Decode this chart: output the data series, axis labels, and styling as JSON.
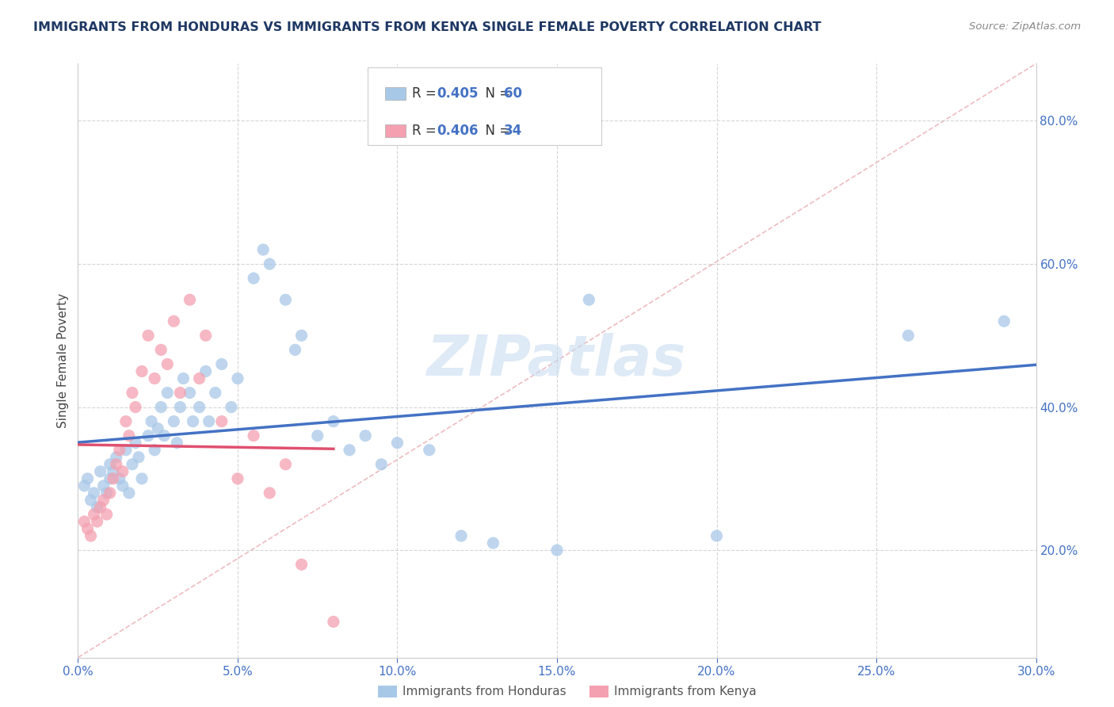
{
  "title": "IMMIGRANTS FROM HONDURAS VS IMMIGRANTS FROM KENYA SINGLE FEMALE POVERTY CORRELATION CHART",
  "source": "Source: ZipAtlas.com",
  "ylabel": "Single Female Poverty",
  "x_min": 0.0,
  "x_max": 0.3,
  "y_min": 0.05,
  "y_max": 0.88,
  "y_ticks": [
    0.2,
    0.4,
    0.6,
    0.8
  ],
  "y_tick_labels": [
    "20.0%",
    "40.0%",
    "60.0%",
    "80.0%"
  ],
  "x_ticks": [
    0.0,
    0.05,
    0.1,
    0.15,
    0.2,
    0.25,
    0.3
  ],
  "x_tick_labels": [
    "0.0%",
    "5.0%",
    "10.0%",
    "15.0%",
    "20.0%",
    "25.0%",
    "30.0%"
  ],
  "R1": "0.405",
  "N1": "60",
  "R2": "0.406",
  "N2": "34",
  "color_honduras": "#A8C8E8",
  "color_kenya": "#F4A0B0",
  "color_line_honduras": "#4472C4",
  "color_line_kenya": "#E05070",
  "color_diagonal": "#D0A0A8",
  "color_title": "#1F3864",
  "color_source": "#888888",
  "color_axis_labels": "#4472C4",
  "watermark_text": "ZIPatlas",
  "watermark_color": "#C8DCF0",
  "legend_label1": "R = 0.405   N = 60",
  "legend_label2": "R = 0.406   N = 34",
  "legend_bottom1": "Immigrants from Honduras",
  "legend_bottom2": "Immigrants from Kenya",
  "honduras_x": [
    0.002,
    0.003,
    0.004,
    0.005,
    0.006,
    0.007,
    0.008,
    0.009,
    0.01,
    0.01,
    0.011,
    0.012,
    0.013,
    0.014,
    0.015,
    0.016,
    0.017,
    0.018,
    0.019,
    0.02,
    0.022,
    0.023,
    0.024,
    0.025,
    0.026,
    0.027,
    0.028,
    0.03,
    0.031,
    0.032,
    0.033,
    0.035,
    0.036,
    0.038,
    0.04,
    0.041,
    0.043,
    0.045,
    0.048,
    0.05,
    0.055,
    0.058,
    0.06,
    0.065,
    0.068,
    0.07,
    0.075,
    0.08,
    0.085,
    0.09,
    0.095,
    0.1,
    0.11,
    0.12,
    0.13,
    0.15,
    0.16,
    0.2,
    0.26,
    0.29
  ],
  "honduras_y": [
    0.29,
    0.3,
    0.27,
    0.28,
    0.26,
    0.31,
    0.29,
    0.28,
    0.32,
    0.3,
    0.31,
    0.33,
    0.3,
    0.29,
    0.34,
    0.28,
    0.32,
    0.35,
    0.33,
    0.3,
    0.36,
    0.38,
    0.34,
    0.37,
    0.4,
    0.36,
    0.42,
    0.38,
    0.35,
    0.4,
    0.44,
    0.42,
    0.38,
    0.4,
    0.45,
    0.38,
    0.42,
    0.46,
    0.4,
    0.44,
    0.58,
    0.62,
    0.6,
    0.55,
    0.48,
    0.5,
    0.36,
    0.38,
    0.34,
    0.36,
    0.32,
    0.35,
    0.34,
    0.22,
    0.21,
    0.2,
    0.55,
    0.22,
    0.5,
    0.52
  ],
  "kenya_x": [
    0.002,
    0.003,
    0.004,
    0.005,
    0.006,
    0.007,
    0.008,
    0.009,
    0.01,
    0.011,
    0.012,
    0.013,
    0.014,
    0.015,
    0.016,
    0.017,
    0.018,
    0.02,
    0.022,
    0.024,
    0.026,
    0.028,
    0.03,
    0.032,
    0.035,
    0.038,
    0.04,
    0.045,
    0.05,
    0.055,
    0.06,
    0.065,
    0.07,
    0.08
  ],
  "kenya_y": [
    0.24,
    0.23,
    0.22,
    0.25,
    0.24,
    0.26,
    0.27,
    0.25,
    0.28,
    0.3,
    0.32,
    0.34,
    0.31,
    0.38,
    0.36,
    0.42,
    0.4,
    0.45,
    0.5,
    0.44,
    0.48,
    0.46,
    0.52,
    0.42,
    0.55,
    0.44,
    0.5,
    0.38,
    0.3,
    0.36,
    0.28,
    0.32,
    0.18,
    0.1
  ]
}
